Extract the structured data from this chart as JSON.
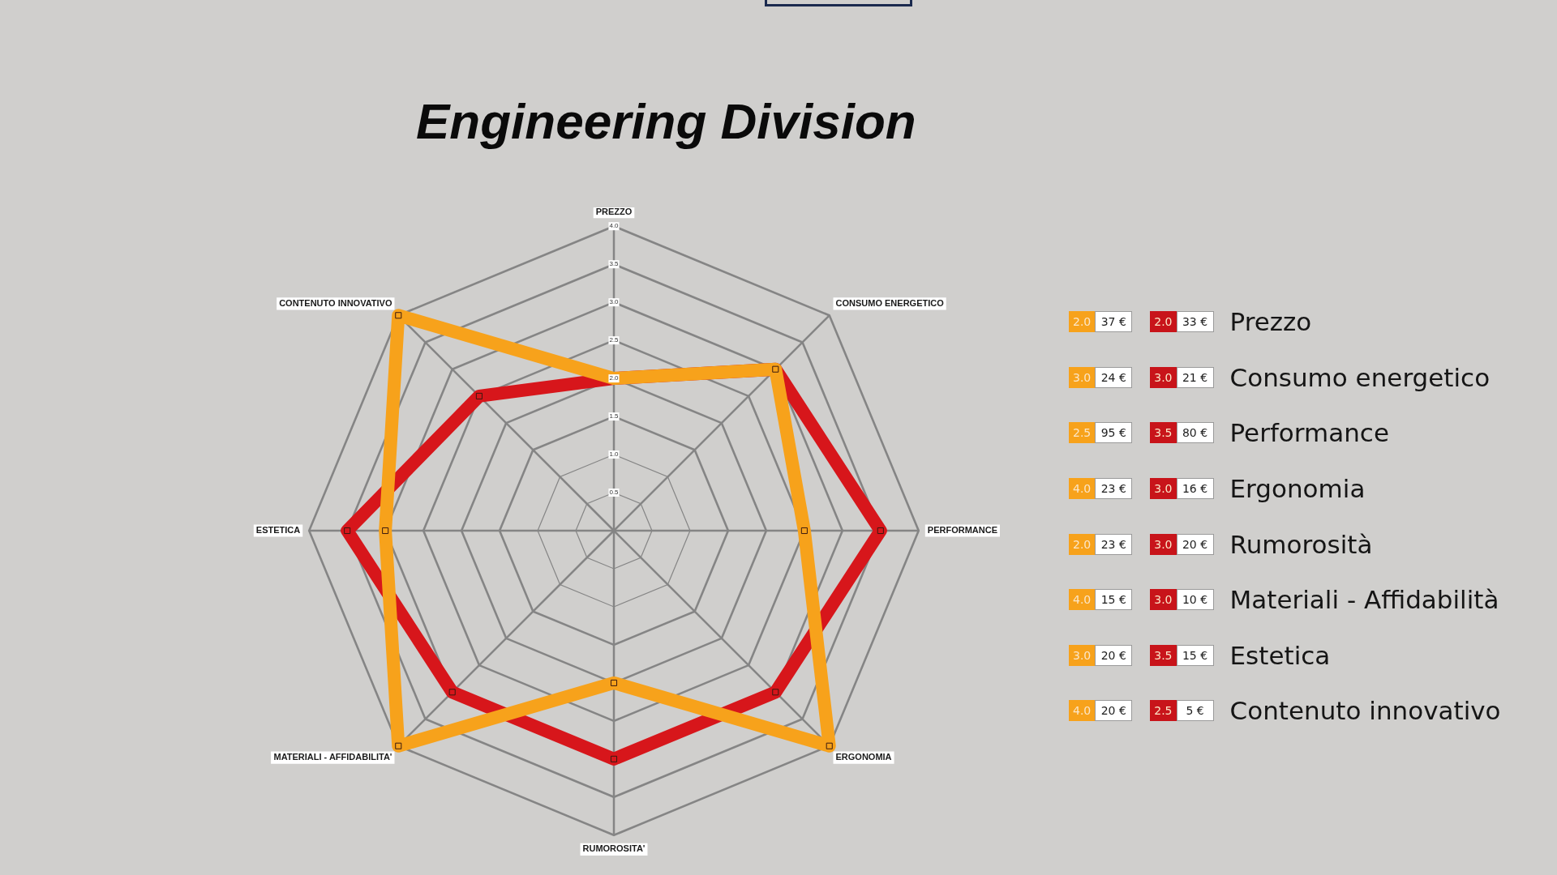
{
  "chart_data": [
    {
      "type": "radar",
      "title": "Engineering Division",
      "categories": [
        "PREZZO",
        "CONSUMO ENERGETICO",
        "PERFORMANCE",
        "ERGONOMIA",
        "RUMOROSITA'",
        "MATERIALI - AFFIDABILITA'",
        "ESTETICA",
        "CONTENUTO INNOVATIVO"
      ],
      "series": [
        {
          "color": "#f7a21b",
          "values": [
            2,
            3,
            2.5,
            4,
            2,
            4,
            3,
            4
          ]
        },
        {
          "color": "#d7161b",
          "values": [
            2,
            3,
            3.5,
            3,
            3,
            3,
            3.5,
            2.5
          ]
        }
      ],
      "ylim": [
        0,
        4
      ],
      "yticks": [
        0.5,
        {
          "value": 1,
          "label": "1.0"
        },
        1.5,
        {
          "value": 2,
          "label": "2.0"
        },
        2.5,
        {
          "value": 3,
          "label": "3.0"
        },
        3.5,
        {
          "value": 4,
          "label": "4.0"
        }
      ],
      "grid": true,
      "marker": "square",
      "line_style": "solid"
    },
    {
      "type": "other",
      "categories": [
        "Prezzo",
        "Consumo energetico",
        "Performance",
        "Ergonomia",
        "Rumorosità",
        "Materiali - Affidabilità",
        "Estetica",
        "Contenuto innovativo"
      ],
      "series": [
        {
          "color": "#f7a21b",
          "values": [
            2,
            3,
            2.5,
            4,
            2,
            4,
            3,
            4
          ],
          "value_labels": [
            "2.0",
            "3.0",
            "2.5",
            "4.0",
            "2.0",
            "4.0",
            "3.0",
            "4.0"
          ]
        },
        {
          "color": "#ffffff",
          "values": [
            37,
            24,
            95,
            23,
            23,
            15,
            20,
            20
          ],
          "value_labels": [
            "37 €",
            "24 €",
            "95 €",
            "23 €",
            "23 €",
            "15 €",
            "20 €",
            "20 €"
          ]
        },
        {
          "color": "#c8141a",
          "values": [
            2,
            3,
            3.5,
            3,
            3,
            3,
            3.5,
            2.5
          ],
          "value_labels": [
            "2.0",
            "3.0",
            "3.5",
            "3.0",
            "3.0",
            "3.0",
            "3.5",
            "2.5"
          ]
        },
        {
          "color": "#ffffff",
          "values": [
            33,
            21,
            80,
            16,
            20,
            10,
            15,
            5
          ],
          "value_labels": [
            "33 €",
            "21 €",
            "80 €",
            "16 €",
            "20 €",
            "10 €",
            "15 €",
            "5 €"
          ]
        }
      ]
    }
  ]
}
